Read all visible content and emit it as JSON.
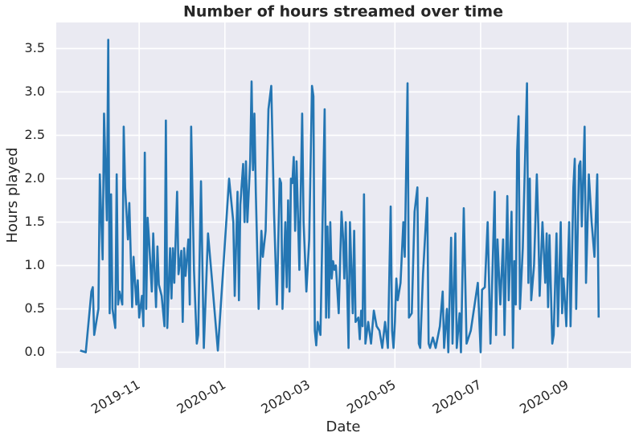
{
  "chart_data": {
    "type": "line",
    "title": "Number of hours streamed over time",
    "x_label": "Date",
    "y_label": "Hours played",
    "xlim": [
      "2019-09-03",
      "2020-10-16"
    ],
    "ylim": [
      -0.18,
      3.8
    ],
    "xticks": [
      {
        "value": "2019-11",
        "label": "2019-11"
      },
      {
        "value": "2020-01",
        "label": "2020-01"
      },
      {
        "value": "2020-03",
        "label": "2020-03"
      },
      {
        "value": "2020-05",
        "label": "2020-05"
      },
      {
        "value": "2020-07",
        "label": "2020-07"
      },
      {
        "value": "2020-09",
        "label": "2020-09"
      }
    ],
    "yticks": [
      {
        "value": 0,
        "label": "0.0"
      },
      {
        "value": 0.5,
        "label": "0.5"
      },
      {
        "value": 1,
        "label": "1.0"
      },
      {
        "value": 1.5,
        "label": "1.5"
      },
      {
        "value": 2,
        "label": "2.0"
      },
      {
        "value": 2.5,
        "label": "2.5"
      },
      {
        "value": 3,
        "label": "3.0"
      },
      {
        "value": 3.5,
        "label": "3.5"
      }
    ],
    "grid": true,
    "x": [
      "2019-09-20",
      "2019-09-24",
      "2019-09-28",
      "2019-09-29",
      "2019-09-30",
      "2019-10-03",
      "2019-10-04",
      "2019-10-06",
      "2019-10-07",
      "2019-10-09",
      "2019-10-10",
      "2019-10-11",
      "2019-10-12",
      "2019-10-13",
      "2019-10-15",
      "2019-10-16",
      "2019-10-17",
      "2019-10-18",
      "2019-10-20",
      "2019-10-21",
      "2019-10-22",
      "2019-10-24",
      "2019-10-25",
      "2019-10-27",
      "2019-10-28",
      "2019-10-30",
      "2019-10-31",
      "2019-11-01",
      "2019-11-03",
      "2019-11-04",
      "2019-11-05",
      "2019-11-06",
      "2019-11-07",
      "2019-11-08",
      "2019-11-10",
      "2019-11-11",
      "2019-11-13",
      "2019-11-14",
      "2019-11-15",
      "2019-11-17",
      "2019-11-19",
      "2019-11-20",
      "2019-11-21",
      "2019-11-23",
      "2019-11-24",
      "2019-11-25",
      "2019-11-26",
      "2019-11-28",
      "2019-11-29",
      "2019-12-01",
      "2019-12-02",
      "2019-12-03",
      "2019-12-04",
      "2019-12-06",
      "2019-12-07",
      "2019-12-08",
      "2019-12-10",
      "2019-12-12",
      "2019-12-13",
      "2019-12-15",
      "2019-12-17",
      "2019-12-20",
      "2019-12-23",
      "2019-12-27",
      "2020-01-04",
      "2020-01-07",
      "2020-01-08",
      "2020-01-10",
      "2020-01-11",
      "2020-01-12",
      "2020-01-14",
      "2020-01-15",
      "2020-01-16",
      "2020-01-17",
      "2020-01-19",
      "2020-01-20",
      "2020-01-21",
      "2020-01-22",
      "2020-01-23",
      "2020-01-25",
      "2020-01-27",
      "2020-01-28",
      "2020-01-30",
      "2020-02-01",
      "2020-02-03",
      "2020-02-05",
      "2020-02-07",
      "2020-02-09",
      "2020-02-10",
      "2020-02-11",
      "2020-02-13",
      "2020-02-14",
      "2020-02-15",
      "2020-02-16",
      "2020-02-17",
      "2020-02-18",
      "2020-02-19",
      "2020-02-20",
      "2020-02-21",
      "2020-02-23",
      "2020-02-25",
      "2020-02-26",
      "2020-02-28",
      "2020-03-01",
      "2020-03-03",
      "2020-03-04",
      "2020-03-05",
      "2020-03-06",
      "2020-03-07",
      "2020-03-09",
      "2020-03-12",
      "2020-03-13",
      "2020-03-14",
      "2020-03-15",
      "2020-03-16",
      "2020-03-17",
      "2020-03-18",
      "2020-03-19",
      "2020-03-20",
      "2020-03-22",
      "2020-03-24",
      "2020-03-25",
      "2020-03-26",
      "2020-03-27",
      "2020-03-29",
      "2020-03-30",
      "2020-04-01",
      "2020-04-02",
      "2020-04-03",
      "2020-04-05",
      "2020-04-06",
      "2020-04-07",
      "2020-04-08",
      "2020-04-09",
      "2020-04-10",
      "2020-04-12",
      "2020-04-14",
      "2020-04-16",
      "2020-04-18",
      "2020-04-20",
      "2020-04-22",
      "2020-04-24",
      "2020-04-26",
      "2020-04-28",
      "2020-04-29",
      "2020-04-30",
      "2020-05-01",
      "2020-05-02",
      "2020-05-03",
      "2020-05-05",
      "2020-05-07",
      "2020-05-08",
      "2020-05-10",
      "2020-05-11",
      "2020-05-13",
      "2020-05-15",
      "2020-05-17",
      "2020-05-18",
      "2020-05-19",
      "2020-05-21",
      "2020-05-24",
      "2020-05-25",
      "2020-05-26",
      "2020-05-28",
      "2020-05-30",
      "2020-06-02",
      "2020-06-04",
      "2020-06-05",
      "2020-06-07",
      "2020-06-08",
      "2020-06-10",
      "2020-06-11",
      "2020-06-13",
      "2020-06-14",
      "2020-06-16",
      "2020-06-17",
      "2020-06-19",
      "2020-06-21",
      "2020-06-24",
      "2020-06-29",
      "2020-07-01",
      "2020-07-02",
      "2020-07-04",
      "2020-07-06",
      "2020-07-08",
      "2020-07-11",
      "2020-07-12",
      "2020-07-13",
      "2020-07-15",
      "2020-07-17",
      "2020-07-18",
      "2020-07-20",
      "2020-07-21",
      "2020-07-23",
      "2020-07-24",
      "2020-07-25",
      "2020-07-26",
      "2020-07-27",
      "2020-07-28",
      "2020-07-29",
      "2020-07-31",
      "2020-08-03",
      "2020-08-04",
      "2020-08-05",
      "2020-08-06",
      "2020-08-08",
      "2020-08-10",
      "2020-08-11",
      "2020-08-12",
      "2020-08-14",
      "2020-08-16",
      "2020-08-17",
      "2020-08-18",
      "2020-08-19",
      "2020-08-21",
      "2020-08-22",
      "2020-08-24",
      "2020-08-25",
      "2020-08-27",
      "2020-08-28",
      "2020-08-29",
      "2020-08-31",
      "2020-09-02",
      "2020-09-03",
      "2020-09-05",
      "2020-09-06",
      "2020-09-07",
      "2020-09-09",
      "2020-09-10",
      "2020-09-11",
      "2020-09-13",
      "2020-09-14",
      "2020-09-16",
      "2020-09-18",
      "2020-09-20",
      "2020-09-22",
      "2020-09-23"
    ],
    "series": [
      {
        "color": "#2476b3",
        "values": [
          0.02,
          0.0,
          0.7,
          0.75,
          0.2,
          0.5,
          2.05,
          1.07,
          2.75,
          1.52,
          3.6,
          0.45,
          1.82,
          0.5,
          0.28,
          2.05,
          0.55,
          0.7,
          0.55,
          2.6,
          1.9,
          1.3,
          1.72,
          0.52,
          1.1,
          0.55,
          0.83,
          0.4,
          0.65,
          0.3,
          2.3,
          0.5,
          1.55,
          1.3,
          0.7,
          1.37,
          0.52,
          1.22,
          0.78,
          0.65,
          0.3,
          2.67,
          0.28,
          1.2,
          0.62,
          1.2,
          0.8,
          1.85,
          0.9,
          1.17,
          0.35,
          1.2,
          0.88,
          1.3,
          0.55,
          2.6,
          0.95,
          0.1,
          0.2,
          1.97,
          0.05,
          1.37,
          0.8,
          0.02,
          2.0,
          1.5,
          0.65,
          1.85,
          0.6,
          1.7,
          2.17,
          1.5,
          2.2,
          1.5,
          2.2,
          3.12,
          2.1,
          2.75,
          1.85,
          0.5,
          1.4,
          1.1,
          1.4,
          2.8,
          3.07,
          1.6,
          0.55,
          2.0,
          1.95,
          0.5,
          1.5,
          0.75,
          1.75,
          0.7,
          2.0,
          1.95,
          2.25,
          1.4,
          2.2,
          0.95,
          2.75,
          1.5,
          0.7,
          1.3,
          3.07,
          2.95,
          0.25,
          0.08,
          0.35,
          0.2,
          2.8,
          0.4,
          1.45,
          0.4,
          1.5,
          0.85,
          1.05,
          0.95,
          1.0,
          0.45,
          1.62,
          1.35,
          0.85,
          1.5,
          0.05,
          1.5,
          0.45,
          1.4,
          0.35,
          0.4,
          0.15,
          0.48,
          0.3,
          1.82,
          0.1,
          0.35,
          0.1,
          0.48,
          0.3,
          0.25,
          0.05,
          0.35,
          0.05,
          1.68,
          0.25,
          0.05,
          0.35,
          0.85,
          0.6,
          0.8,
          1.5,
          1.1,
          3.1,
          0.4,
          0.45,
          1.62,
          1.9,
          0.1,
          0.05,
          0.9,
          1.78,
          0.1,
          0.05,
          0.17,
          0.05,
          0.3,
          0.7,
          0.05,
          0.5,
          0.0,
          1.32,
          0.1,
          1.37,
          0.05,
          0.45,
          0.0,
          1.66,
          0.1,
          0.25,
          0.8,
          0.0,
          0.72,
          0.75,
          1.5,
          0.1,
          1.85,
          0.2,
          1.3,
          0.55,
          1.3,
          0.2,
          1.8,
          0.6,
          1.62,
          0.05,
          1.05,
          0.55,
          2.32,
          2.72,
          0.5,
          1.2,
          3.1,
          0.8,
          2.0,
          0.6,
          1.0,
          2.05,
          1.48,
          0.65,
          1.5,
          0.8,
          1.37,
          0.52,
          1.35,
          0.1,
          0.2,
          1.37,
          0.3,
          1.5,
          0.45,
          0.85,
          0.3,
          1.5,
          0.3,
          1.9,
          2.23,
          0.5,
          2.15,
          2.2,
          1.45,
          2.6,
          0.8,
          2.05,
          1.5,
          1.1,
          2.05,
          0.4
        ]
      }
    ]
  }
}
